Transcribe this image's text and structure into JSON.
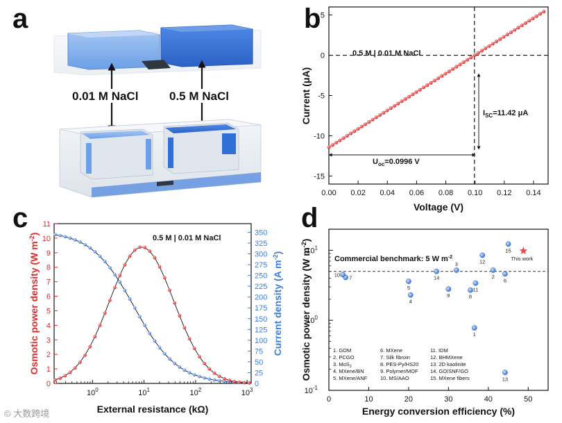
{
  "panels": {
    "a": "a",
    "b": "b",
    "c": "c",
    "d": "d"
  },
  "schematic": {
    "left_label": "0.01 M NaCl",
    "right_label": "0.5 M NaCl",
    "colors": {
      "blue_dark": "#2f6fd6",
      "blue_light": "#6aa0ee",
      "glass": "#e9eef4",
      "membrane": "#333a44"
    }
  },
  "chart_data": [
    {
      "id": "b",
      "type": "line",
      "xlabel": "Voltage (V)",
      "ylabel": "Current (μA)",
      "xlim": [
        0.0,
        0.15
      ],
      "ylim": [
        -16,
        6
      ],
      "xticks": [
        "0.00",
        "0.02",
        "0.04",
        "0.06",
        "0.08",
        "0.10",
        "0.12",
        "0.14"
      ],
      "yticks": [
        "5",
        "0",
        "-5",
        "-10",
        "-15"
      ],
      "annotation_top": "0.5 M | 0.01 M NaCl",
      "isc_label": "I",
      "isc_sub": "SC",
      "isc_value": "=11.42 μA",
      "uoc_label": "U",
      "uoc_sub": "oc",
      "uoc_value": "=0.0996 V",
      "series": [
        {
          "name": "I-V",
          "slope": 114.66,
          "intercept": -11.42,
          "x_start": 0.0,
          "x_end": 0.147,
          "n_points": 60,
          "color": "#e63a3a"
        }
      ],
      "dashed_x": 0.0996,
      "dashed_y": 0
    },
    {
      "id": "c",
      "type": "line",
      "xlabel": "External resistance (kΩ)",
      "ylabel_left": "Osmotic power density (W m",
      "ylabel_left_sup": "-2",
      "ylabel_left_end": ")",
      "ylabel_right": "Current density (A m",
      "ylabel_right_sup": "-2",
      "ylabel_right_end": ")",
      "annotation_top": "0.5 M | 0.01 M NaCl",
      "xscale": "log",
      "xlim": [
        0.18,
        1200
      ],
      "xticks": [
        {
          "v": 1,
          "base": "10",
          "exp": "0"
        },
        {
          "v": 10,
          "base": "10",
          "exp": "1"
        },
        {
          "v": 100,
          "base": "10",
          "exp": "2"
        },
        {
          "v": 1000,
          "base": "10",
          "exp": "3"
        }
      ],
      "ylim_left": [
        0,
        11
      ],
      "yticks_left": [
        "0",
        "1",
        "2",
        "3",
        "4",
        "5",
        "6",
        "7",
        "8",
        "9",
        "10",
        "11"
      ],
      "ylim_right": [
        0,
        370
      ],
      "yticks_right": [
        "0",
        "25",
        "50",
        "75",
        "100",
        "125",
        "150",
        "175",
        "200",
        "225",
        "250",
        "275",
        "300",
        "325",
        "350"
      ],
      "series": [
        {
          "name": "Osmotic power density",
          "axis": "left",
          "color": "#e02a2a",
          "peak_x": 9.0,
          "peak_y": 9.4,
          "sigma_log10": 0.62
        },
        {
          "name": "Current density",
          "axis": "right",
          "color": "#3d7fd9",
          "i0": 353,
          "r_half": 6.5,
          "exp": 1.0
        }
      ]
    },
    {
      "id": "d",
      "type": "scatter",
      "xlabel": "Energy conversion efficiency (%)",
      "ylabel": "Osmotic power density (W m",
      "ylabel_sup": "-2",
      "ylabel_end": ")",
      "xlim": [
        0,
        55
      ],
      "xticks": [
        "0",
        "10",
        "20",
        "30",
        "40",
        "50"
      ],
      "yscale": "log",
      "ylim": [
        0.1,
        20
      ],
      "yticks": [
        {
          "v": 0.1,
          "base": "10",
          "exp": "-1"
        },
        {
          "v": 1,
          "base": "10",
          "exp": "0"
        },
        {
          "v": 10,
          "base": "10",
          "exp": "1"
        }
      ],
      "benchmark": {
        "value": 5,
        "label": "Commercial benchmark: 5 W m",
        "label_sup": "-2"
      },
      "points": [
        {
          "label": "1",
          "x": 36.5,
          "y": 0.78,
          "lp": "b"
        },
        {
          "label": "2",
          "x": 41.2,
          "y": 5.2,
          "lp": "b"
        },
        {
          "label": "3",
          "x": 32.0,
          "y": 5.2,
          "lp": "t"
        },
        {
          "label": "4",
          "x": 20.5,
          "y": 2.3,
          "lp": "b"
        },
        {
          "label": "5",
          "x": 20.0,
          "y": 3.6,
          "lp": "b"
        },
        {
          "label": "6",
          "x": 44.2,
          "y": 4.6,
          "lp": "b"
        },
        {
          "label": "7",
          "x": 4.2,
          "y": 4.1,
          "lp": "r"
        },
        {
          "label": "8",
          "x": 35.5,
          "y": 2.7,
          "lp": "b"
        },
        {
          "label": "9",
          "x": 30.0,
          "y": 2.8,
          "lp": "b"
        },
        {
          "label": "10",
          "x": 3.5,
          "y": 4.5,
          "lp": "l"
        },
        {
          "label": "11",
          "x": 36.8,
          "y": 3.4,
          "lp": "b"
        },
        {
          "label": "12",
          "x": 38.5,
          "y": 8.5,
          "lp": "b"
        },
        {
          "label": "13",
          "x": 44.2,
          "y": 0.18,
          "lp": "b"
        },
        {
          "label": "14",
          "x": 27.0,
          "y": 5.0,
          "lp": "b"
        },
        {
          "label": "15",
          "x": 45.0,
          "y": 12.3,
          "lp": "b"
        }
      ],
      "this_work": {
        "label": "This work",
        "x": 48.8,
        "y": 9.8,
        "color": "#e84c4c"
      },
      "legend": [
        "1. GOM",
        "2. PCGO",
        "3. MoS",
        "4. MXene/BN",
        "5. MXene/ANF",
        "6. MXene",
        "7. Silk fibroin",
        "8. PES-Py/HS20",
        "9. Polymer/MOF",
        "10. MS/AAO",
        "11. IDM",
        "12. BHMXene",
        "13. 2D kaolinite",
        "14. GO/SNF/GO",
        "15. MXene fibers"
      ],
      "legend_sub_mos2": "2"
    }
  ],
  "watermark": "© 大数跨境"
}
